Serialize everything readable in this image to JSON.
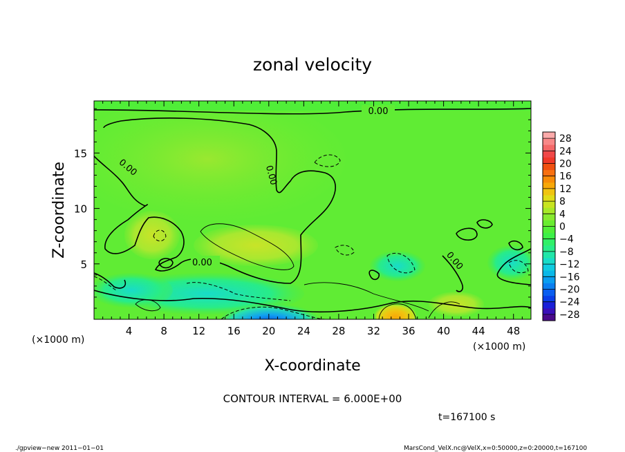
{
  "chart_data": {
    "type": "heatmap",
    "title": "zonal velocity",
    "xlabel": "X-coordinate",
    "ylabel": "Z-coordinate",
    "x_unit_label": "(×1000 m)",
    "y_unit_label": "(×1000 m)",
    "x_ticks": [
      4,
      8,
      12,
      16,
      20,
      24,
      28,
      32,
      36,
      40,
      44,
      48
    ],
    "y_ticks": [
      5,
      10,
      15
    ],
    "xlim": [
      0,
      50
    ],
    "ylim": [
      0,
      19.7
    ],
    "contour_interval_text": "CONTOUR INTERVAL = 6.000E+00",
    "contour_labels": [
      "0.00",
      "0.00",
      "0.00",
      "0.00",
      "0.00"
    ],
    "colorbar": {
      "levels": [
        -30,
        -28,
        -26,
        -24,
        -22,
        -20,
        -18,
        -16,
        -14,
        -12,
        -10,
        -8,
        -6,
        -4,
        -2,
        0,
        2,
        4,
        6,
        8,
        10,
        12,
        14,
        16,
        18,
        20,
        22,
        24,
        26,
        28,
        30
      ],
      "tick_labels": [
        "28",
        "24",
        "20",
        "16",
        "12",
        "8",
        "4",
        "0",
        "−4",
        "−8",
        "−12",
        "−16",
        "−20",
        "−24",
        "−28"
      ],
      "tick_values": [
        28,
        24,
        20,
        16,
        12,
        8,
        4,
        0,
        -4,
        -8,
        -12,
        -16,
        -20,
        -24,
        -28
      ],
      "colors": [
        "#4a0a8a",
        "#3a10b8",
        "#1a20d8",
        "#0a3ee8",
        "#0a5ef0",
        "#0a7ef0",
        "#0a9ef0",
        "#0ab8e8",
        "#10cce0",
        "#18dcc8",
        "#20e6a8",
        "#28ec88",
        "#30f068",
        "#3cf048",
        "#50ee38",
        "#68ec30",
        "#88ea30",
        "#a8e828",
        "#c8e420",
        "#e0dc18",
        "#f0c410",
        "#f8a808",
        "#f88c08",
        "#f87010",
        "#f05010",
        "#f03828",
        "#f04848",
        "#f46868",
        "#f88888",
        "#fcaaaa"
      ]
    },
    "field_description_features": [
      {
        "x": 20,
        "z": 0.7,
        "value": -22
      },
      {
        "x": 34.5,
        "z": 0.8,
        "value": 14
      },
      {
        "x": 7,
        "z": 8.5,
        "value": 2
      },
      {
        "x": 19,
        "z": 7.0,
        "value": 6
      },
      {
        "x": 14,
        "z": 3.0,
        "value": -8
      },
      {
        "x": 26.5,
        "z": 15.0,
        "value": -6
      },
      {
        "x": 47.5,
        "z": 6.5,
        "value": -8
      },
      {
        "x": 35,
        "z": 6.0,
        "value": -6
      },
      {
        "x": 10,
        "z": 18.0,
        "value": 6
      },
      {
        "x": 2,
        "z": 3.5,
        "value": -6
      }
    ]
  },
  "time_label": "t=167100 s",
  "footer_left": "./gpview−new   2011−01−01",
  "footer_right": "MarsCond_VelX.nc@VelX,x=0:50000,z=0:20000,t=167100"
}
